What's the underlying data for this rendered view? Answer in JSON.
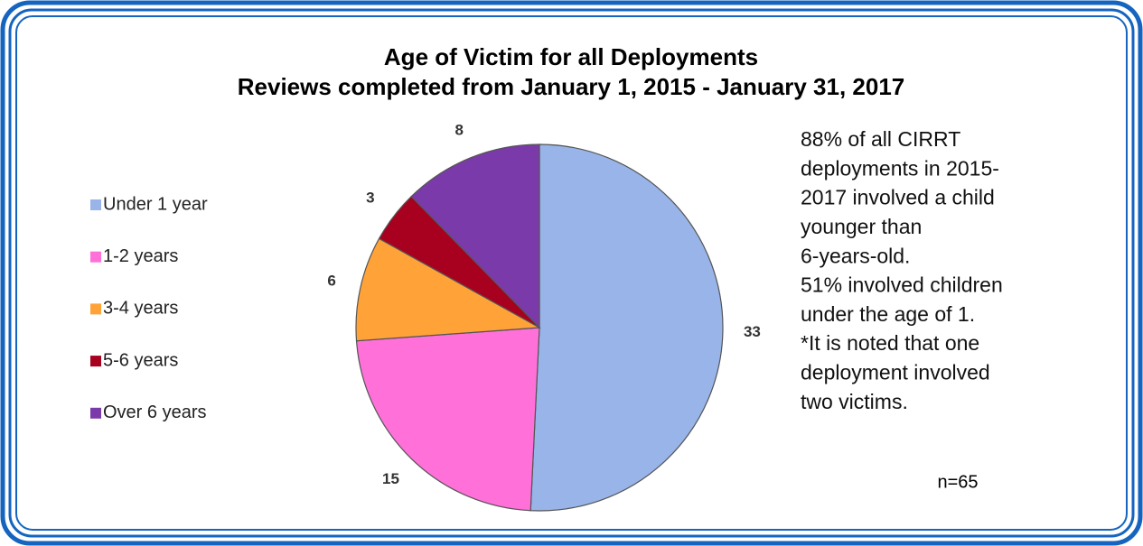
{
  "chart_data": {
    "type": "pie",
    "title": "Age of Victim for all Deployments",
    "subtitle": "Reviews completed from January 1, 2015 - January 31, 2017",
    "categories": [
      "Under 1 year",
      "1-2 years",
      "3-4 years",
      "5-6 years",
      "Over 6 years"
    ],
    "values": [
      33,
      15,
      6,
      3,
      8
    ],
    "colors": [
      "#98b4e8",
      "#ff70d9",
      "#ffa339",
      "#a8001f",
      "#7b3aa9"
    ],
    "legend": "left",
    "annotation": [
      "88% of all CIRRT",
      "deployments in 2015-",
      "2017 involved a child",
      "younger than",
      "6-years-old.",
      "51% involved children",
      "under the age of 1.",
      "*It is noted that one",
      "deployment involved",
      "two victims."
    ],
    "note": "n=65"
  }
}
